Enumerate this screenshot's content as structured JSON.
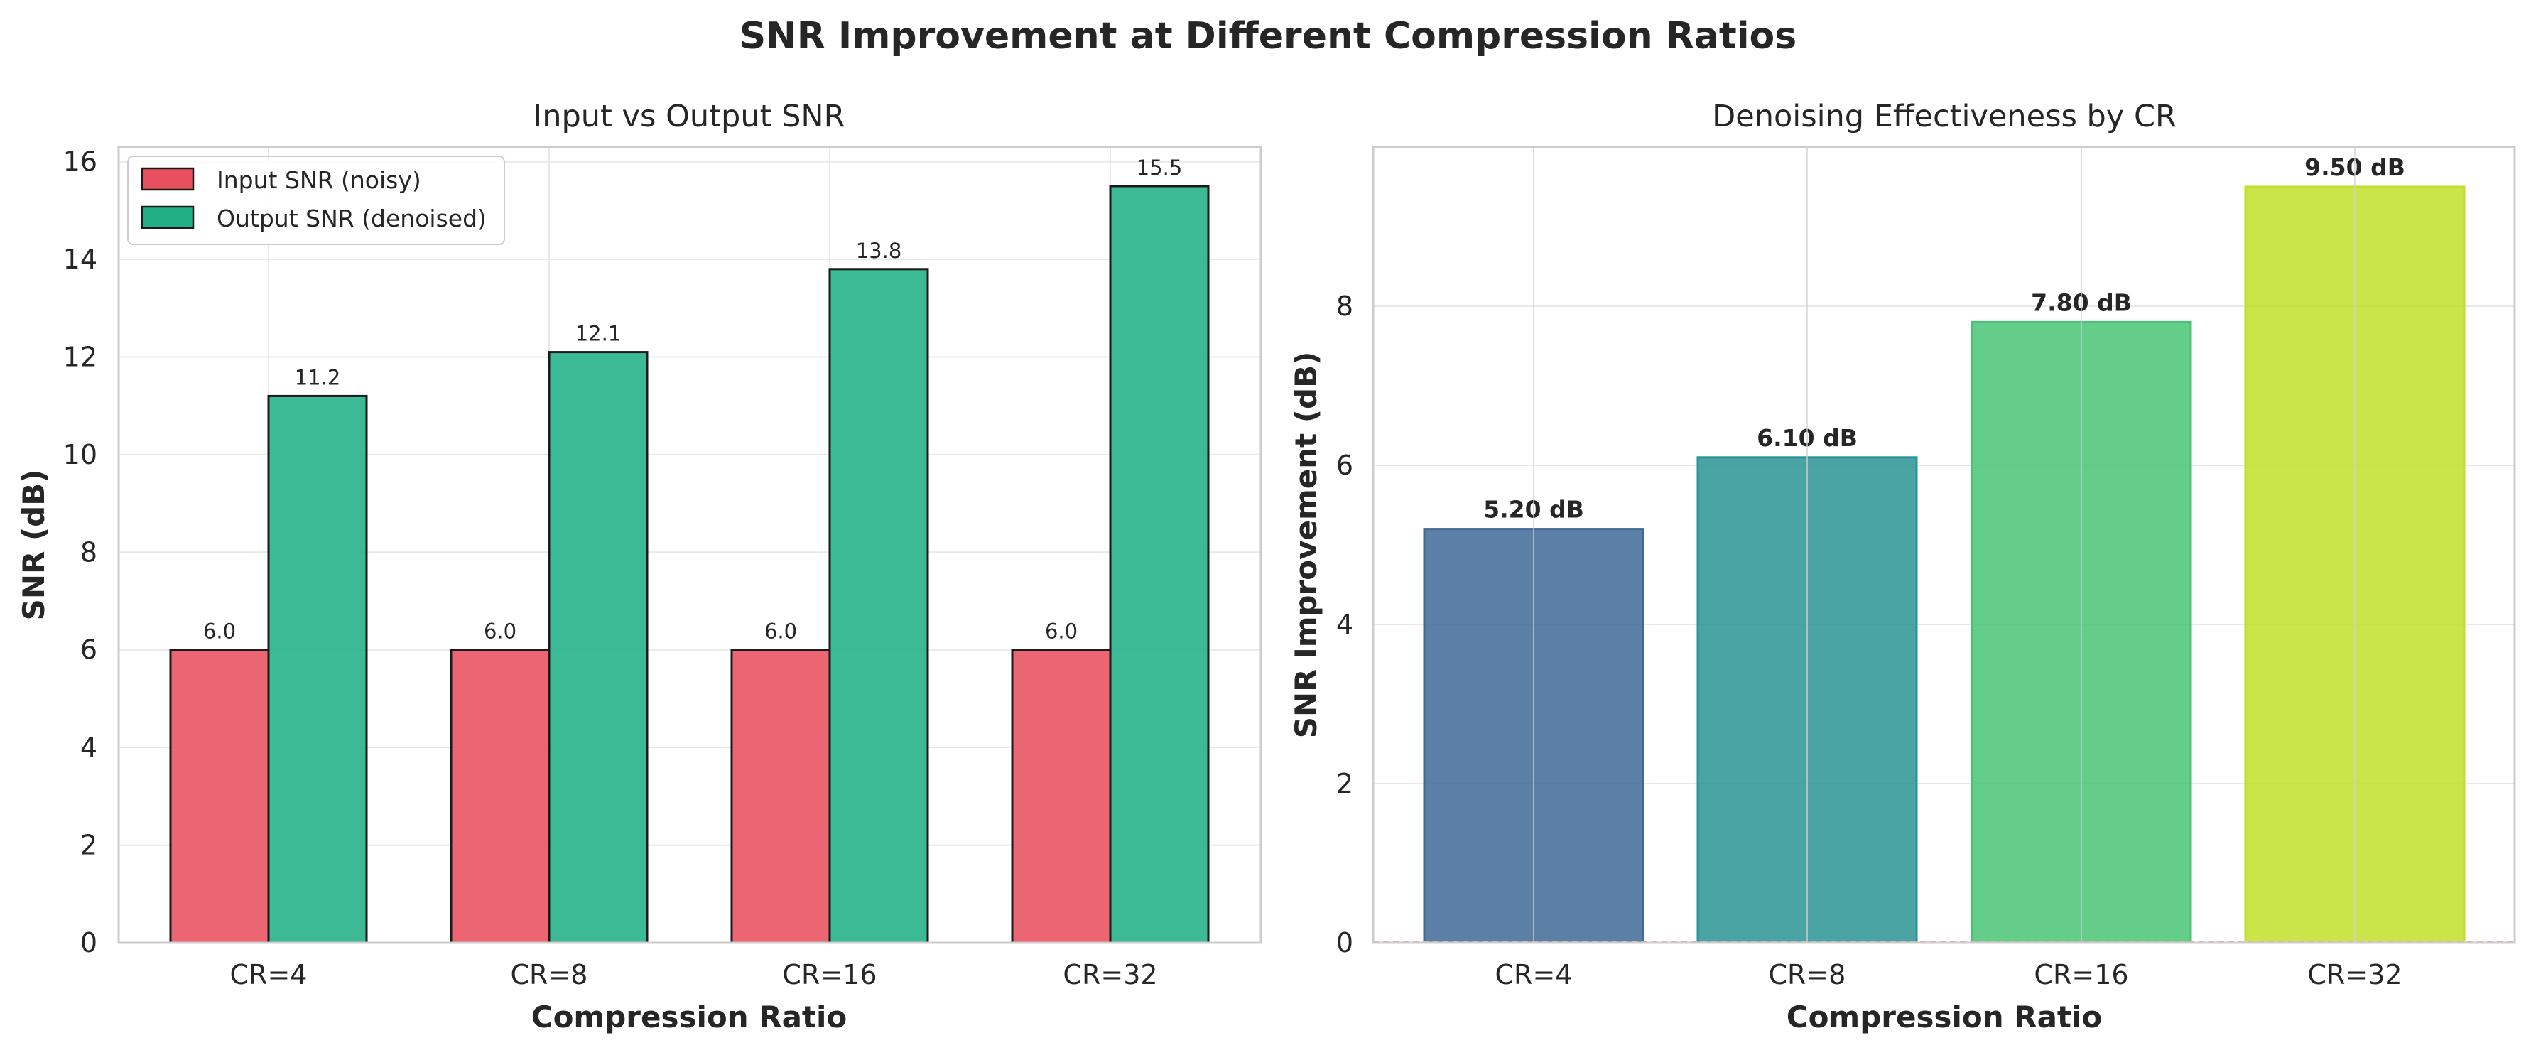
{
  "title": "SNR Improvement at Different Compression Ratios",
  "colors": {
    "input": "#e8505f",
    "output": "#21b086",
    "grid": "#e8e8e8",
    "spine": "#cccccc",
    "right_bars": [
      "#3f6996",
      "#2a9494",
      "#48c474",
      "#bfe02a"
    ]
  },
  "chart_data": [
    {
      "type": "bar",
      "title": "Input vs Output SNR",
      "xlabel": "Compression Ratio",
      "ylabel": "SNR (dB)",
      "categories": [
        "CR=4",
        "CR=8",
        "CR=16",
        "CR=32"
      ],
      "series": [
        {
          "name": "Input SNR (noisy)",
          "values": [
            6.0,
            6.0,
            6.0,
            6.0
          ],
          "labels": [
            "6.0",
            "6.0",
            "6.0",
            "6.0"
          ]
        },
        {
          "name": "Output SNR (denoised)",
          "values": [
            11.2,
            12.1,
            13.8,
            15.5
          ],
          "labels": [
            "11.2",
            "12.1",
            "13.8",
            "15.5"
          ]
        }
      ],
      "ylim": [
        0,
        16.3
      ],
      "yticks": [
        "0",
        "2",
        "4",
        "6",
        "8",
        "10",
        "12",
        "14",
        "16"
      ],
      "grid": true,
      "legend": "top-left"
    },
    {
      "type": "bar",
      "title": "Denoising Effectiveness by CR",
      "xlabel": "Compression Ratio",
      "ylabel": "SNR Improvement (dB)",
      "categories": [
        "CR=4",
        "CR=8",
        "CR=16",
        "CR=32"
      ],
      "values": [
        5.2,
        6.1,
        7.8,
        9.5
      ],
      "labels": [
        "5.20 dB",
        "6.10 dB",
        "7.80 dB",
        "9.50 dB"
      ],
      "ylim": [
        0,
        10
      ],
      "yticks": [
        "0",
        "2",
        "4",
        "6",
        "8"
      ],
      "grid": true
    }
  ]
}
